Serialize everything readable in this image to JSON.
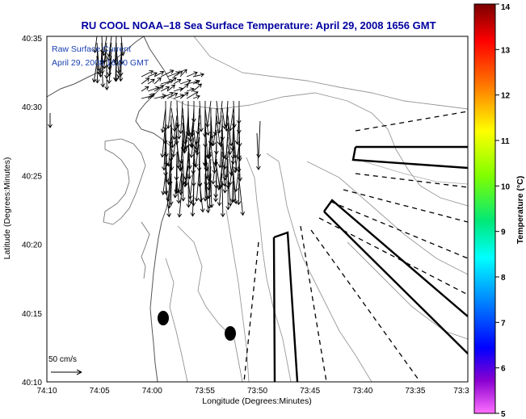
{
  "title": "RU COOL  NOAA–18  Sea Surface Temperature:  April 29, 2008 1656 GMT",
  "legend": {
    "line1": "Raw Surface Current",
    "line2": "April 29, 2008 16:00 GMT"
  },
  "scale_label": "50 cm/s",
  "x_axis": {
    "label": "Longitude (Degrees:Minutes)",
    "ticks": [
      "74:10",
      "74:05",
      "74:00",
      "73:55",
      "73:50",
      "73:45",
      "73:40",
      "73:35",
      "73:3"
    ]
  },
  "y_axis": {
    "label": "Latitude (Degrees:Minutes)",
    "ticks": [
      "40:35",
      "40:30",
      "40:25",
      "40:20",
      "40:15",
      "40:10"
    ]
  },
  "colorbar": {
    "label": "Temperature (°C)",
    "ticks": [
      "14",
      "13",
      "12",
      "11",
      "10",
      "9",
      "8",
      "7",
      "6",
      "5"
    ],
    "colors": [
      "#8b0000",
      "#ff0000",
      "#ff8c00",
      "#ffff00",
      "#7fff00",
      "#00e0a0",
      "#00ffff",
      "#0080ff",
      "#0000ff",
      "#8000c0",
      "#ff60ff"
    ]
  }
}
